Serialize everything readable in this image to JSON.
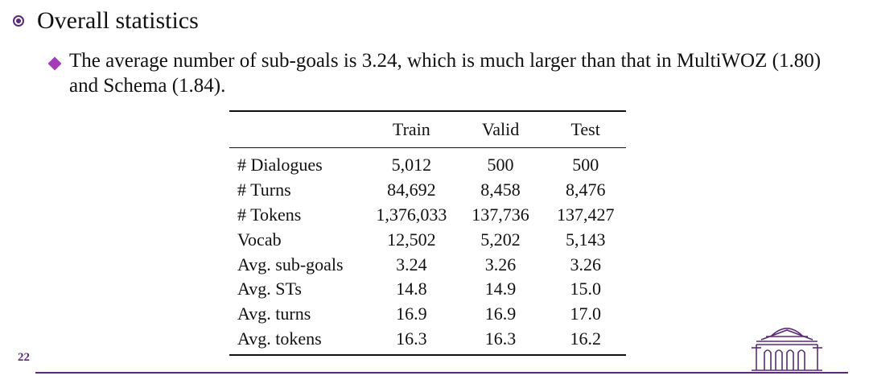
{
  "header": {
    "title": "Overall statistics"
  },
  "bullet": {
    "text": "The average number of sub-goals is 3.24, which is much larger than that in MultiWOZ (1.80) and Schema (1.84)."
  },
  "table": {
    "columns": [
      "",
      "Train",
      "Valid",
      "Test"
    ],
    "rows": [
      {
        "label": "# Dialogues",
        "train": "5,012",
        "valid": "500",
        "test": "500"
      },
      {
        "label": "# Turns",
        "train": "84,692",
        "valid": "8,458",
        "test": "8,476"
      },
      {
        "label": "# Tokens",
        "train": "1,376,033",
        "valid": "137,736",
        "test": "137,427"
      },
      {
        "label": "Vocab",
        "train": "12,502",
        "valid": "5,202",
        "test": "5,143"
      },
      {
        "label": "Avg. sub-goals",
        "train": "3.24",
        "valid": "3.26",
        "test": "3.26"
      },
      {
        "label": "Avg. STs",
        "train": "14.8",
        "valid": "14.9",
        "test": "15.0"
      },
      {
        "label": "Avg. turns",
        "train": "16.9",
        "valid": "16.9",
        "test": "17.0"
      },
      {
        "label": "Avg. tokens",
        "train": "16.3",
        "valid": "16.3",
        "test": "16.2"
      }
    ]
  },
  "footer": {
    "page_number": "22"
  },
  "colors": {
    "accent": "#5a2a7a",
    "bullet": "#a53cb8"
  },
  "icons": {
    "header_bullet": "circle-dot-bullet-icon",
    "item_bullet": "diamond-bullet-icon",
    "logo": "rotunda-logo-icon"
  }
}
